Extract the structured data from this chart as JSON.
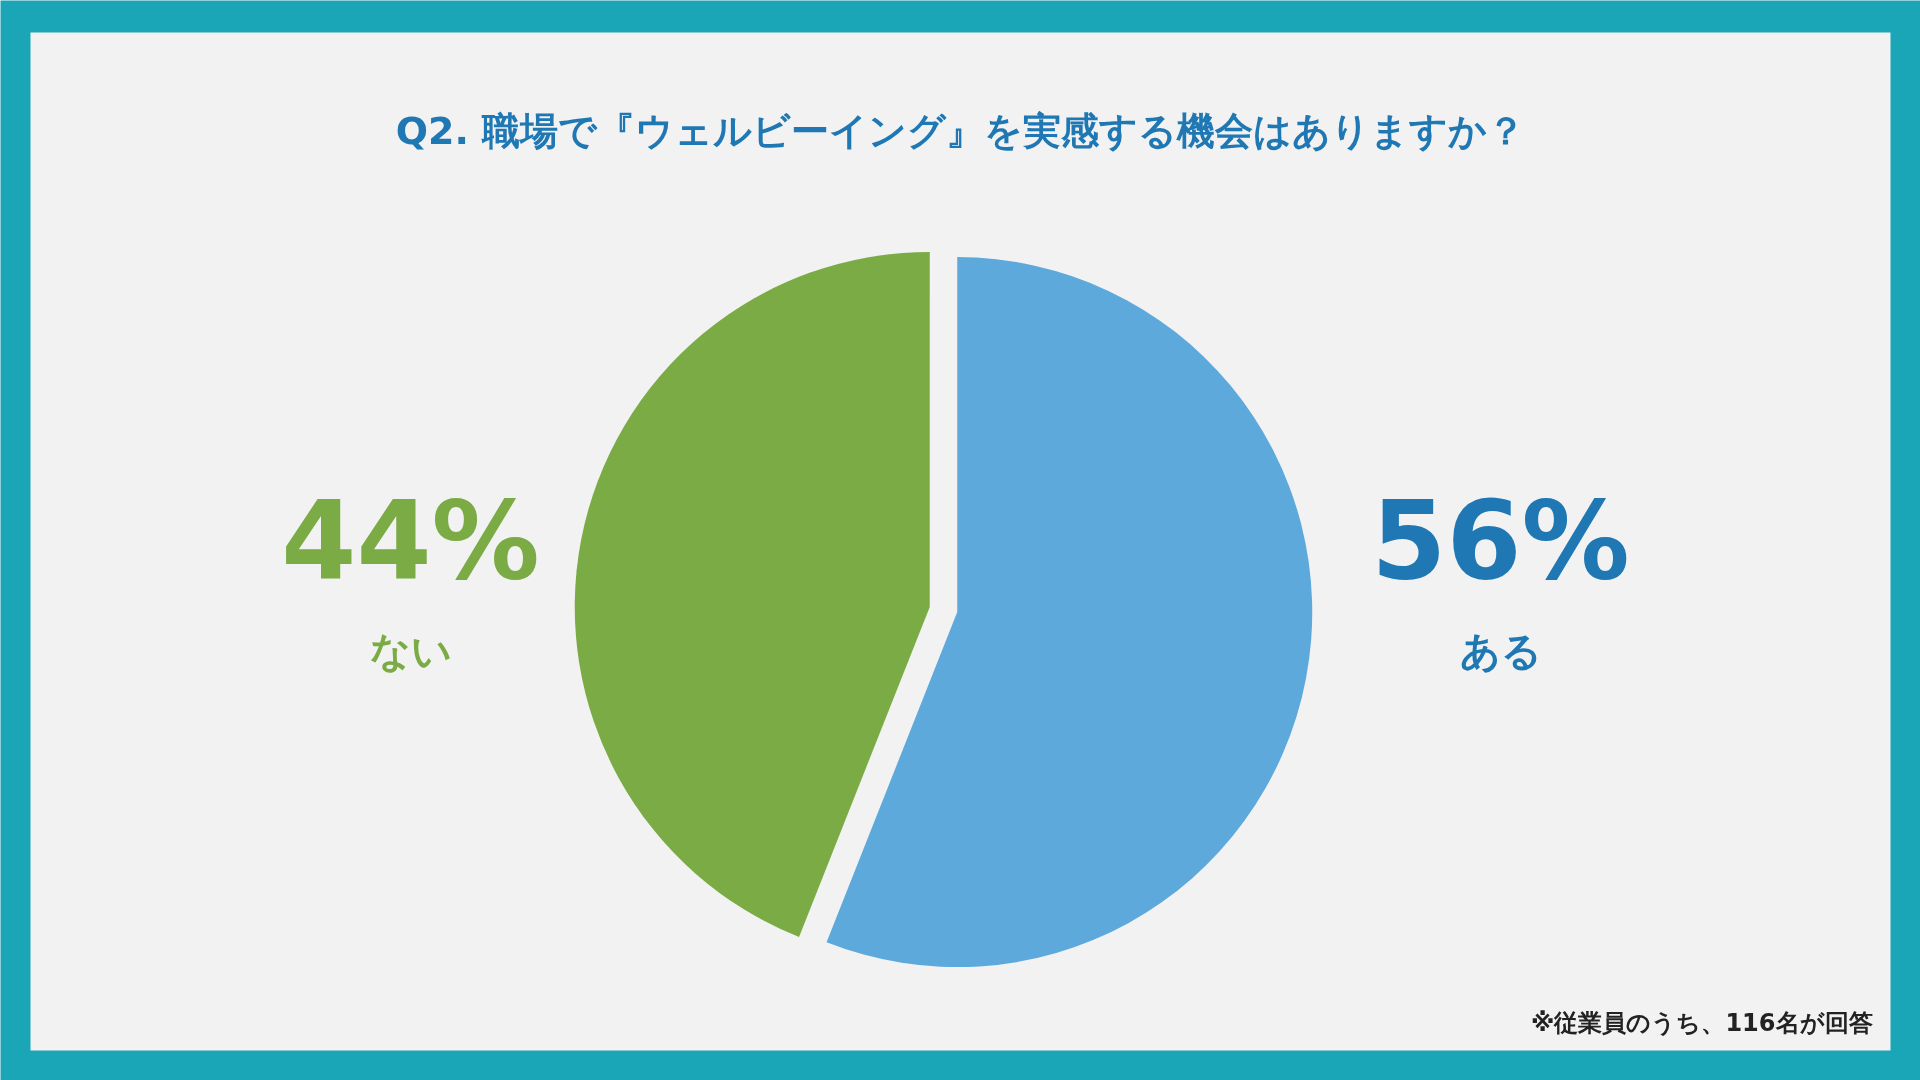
{
  "chart_data": {
    "type": "pie",
    "title": "Q2. 職場で『ウェルビーイング』を実感する機会はありますか？",
    "categories": [
      "ある",
      "ない"
    ],
    "values": [
      56,
      44
    ],
    "colors": [
      "#5ea9dc",
      "#7aab45"
    ],
    "value_labels": [
      "56%",
      "44%"
    ],
    "annotations": [
      "※従業員のうち、116名が回答"
    ]
  }
}
